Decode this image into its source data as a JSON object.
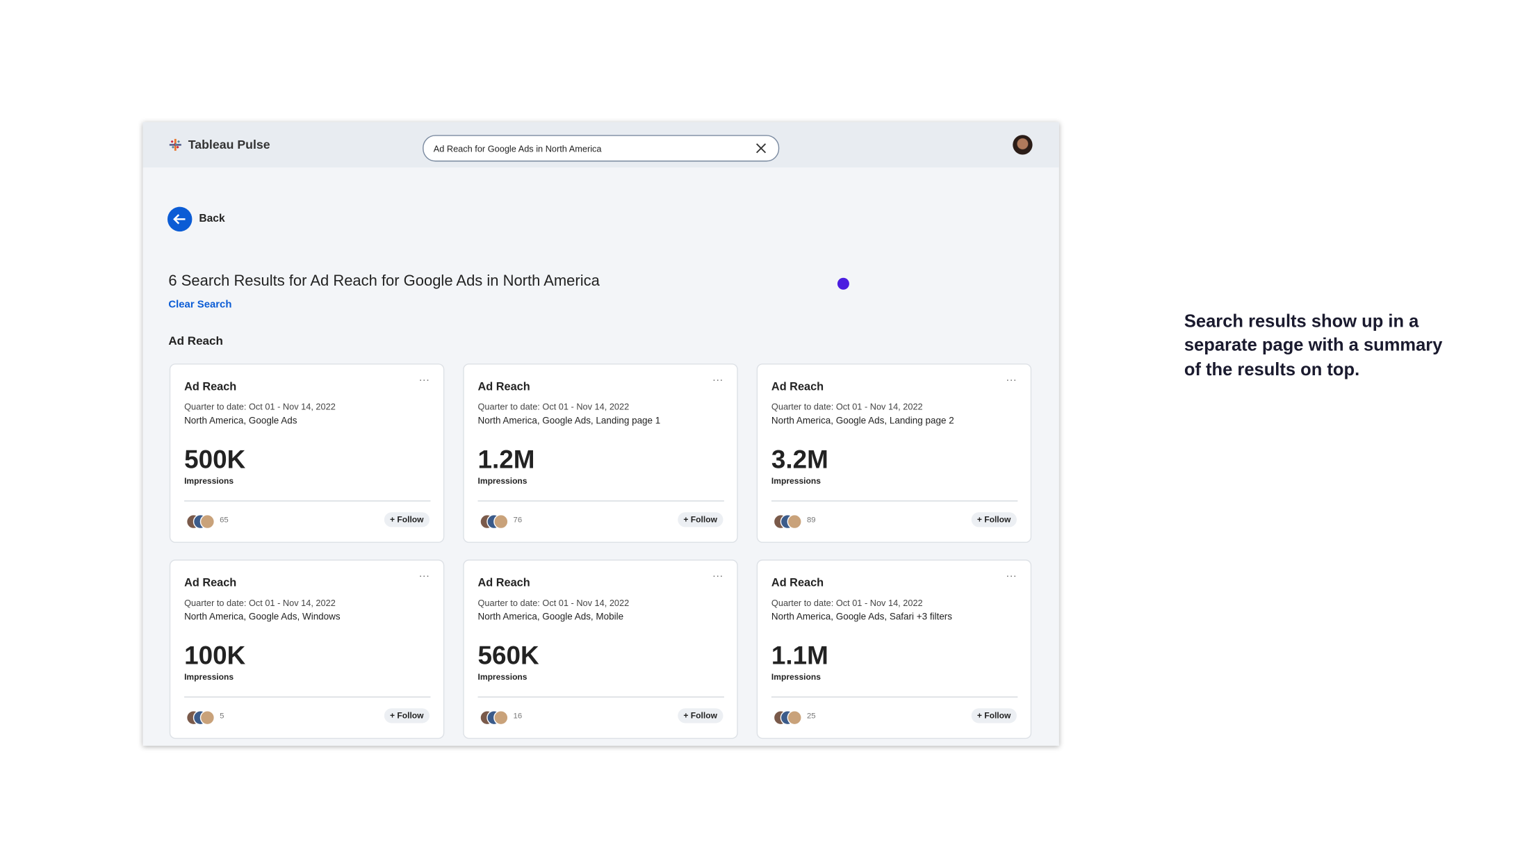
{
  "header": {
    "logo": "Tableau Pulse",
    "search_query": "Ad Reach for Google Ads in North America"
  },
  "back": "Back",
  "results": {
    "title": "6 Search Results for Ad Reach for Google Ads in North America",
    "clear": "Clear Search",
    "section": "Ad Reach",
    "cards": [
      {
        "title": "Ad Reach",
        "period": "Quarter to date: Oct 01 - Nov 14, 2022",
        "filters": "North America, Google Ads",
        "value": "500K",
        "unit": "Impressions",
        "followers": "65",
        "follow": "Follow"
      },
      {
        "title": "Ad Reach",
        "period": "Quarter to date: Oct 01 - Nov 14, 2022",
        "filters": "North America, Google Ads, Landing page 1",
        "value": "1.2M",
        "unit": "Impressions",
        "followers": "76",
        "follow": "Follow"
      },
      {
        "title": "Ad Reach",
        "period": "Quarter to date: Oct 01 - Nov 14, 2022",
        "filters": "North America, Google Ads, Landing page 2",
        "value": "3.2M",
        "unit": "Impressions",
        "followers": "89",
        "follow": "Follow"
      },
      {
        "title": "Ad Reach",
        "period": "Quarter to date: Oct 01 - Nov 14, 2022",
        "filters": "North America, Google Ads, Windows",
        "value": "100K",
        "unit": "Impressions",
        "followers": "5",
        "follow": "Follow"
      },
      {
        "title": "Ad Reach",
        "period": "Quarter to date: Oct 01 - Nov 14, 2022",
        "filters": "North America, Google Ads, Mobile",
        "value": "560K",
        "unit": "Impressions",
        "followers": "16",
        "follow": "Follow"
      },
      {
        "title": "Ad Reach",
        "period": "Quarter to date: Oct 01 - Nov 14, 2022",
        "filters": "North America, Google Ads, Safari +3 filters",
        "value": "1.1M",
        "unit": "Impressions",
        "followers": "25",
        "follow": "Follow"
      }
    ]
  },
  "annotation": {
    "lines": [
      "Search results show up in a",
      "separate page with a summary",
      "of the results on top."
    ]
  }
}
